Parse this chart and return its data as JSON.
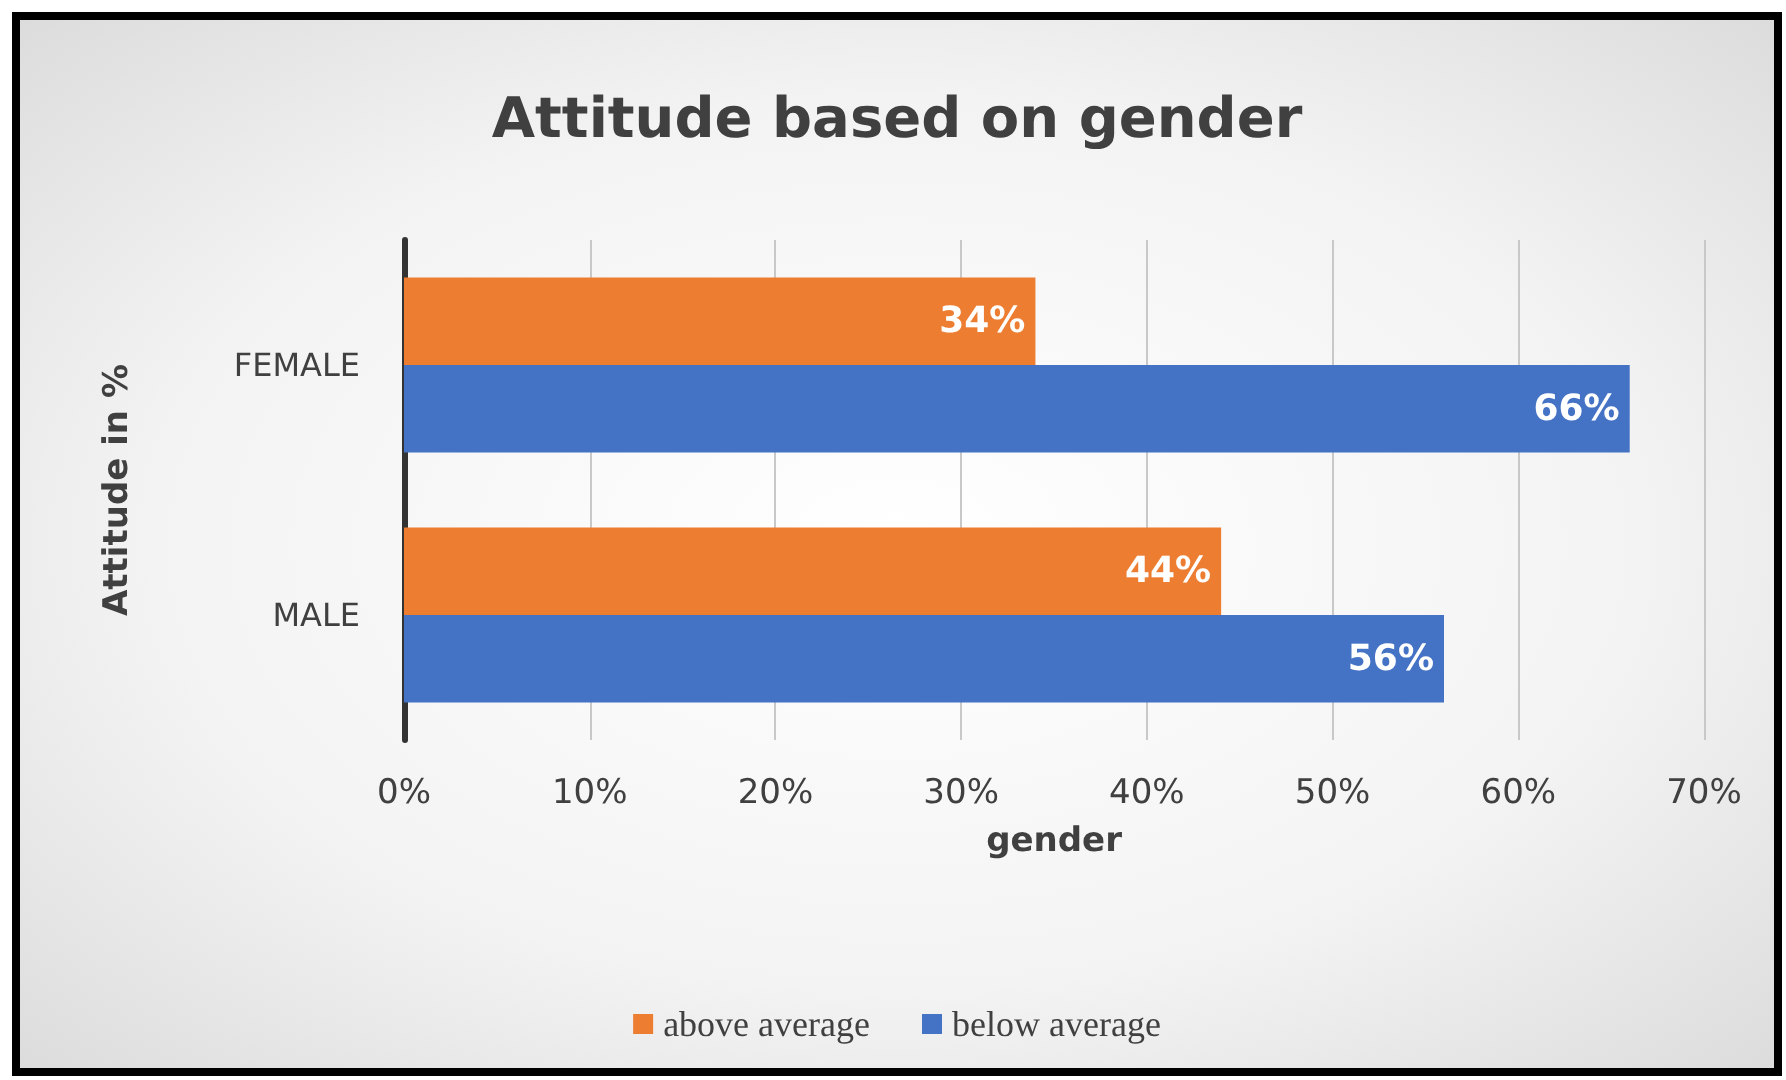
{
  "chart_data": {
    "type": "bar",
    "orientation": "horizontal",
    "title": "Attitude based on gender",
    "xlabel": "gender",
    "ylabel": "Attitude in %",
    "categories": [
      "FEMALE",
      "MALE"
    ],
    "series": [
      {
        "name": "above average",
        "color": "#ed7d31",
        "values": [
          34,
          44
        ],
        "value_labels": [
          "34%",
          "44%"
        ]
      },
      {
        "name": "below average",
        "color": "#4472c4",
        "values": [
          66,
          56
        ],
        "value_labels": [
          "66%",
          "56%"
        ]
      }
    ],
    "xlim": [
      0,
      70
    ],
    "xticks": [
      {
        "value": 0,
        "label": "0%"
      },
      {
        "value": 10,
        "label": "10%"
      },
      {
        "value": 20,
        "label": "20%"
      },
      {
        "value": 30,
        "label": "30%"
      },
      {
        "value": 40,
        "label": "40%"
      },
      {
        "value": 50,
        "label": "50%"
      },
      {
        "value": 60,
        "label": "60%"
      },
      {
        "value": 70,
        "label": "70%"
      }
    ],
    "grid": "x",
    "legend": "bottom"
  }
}
